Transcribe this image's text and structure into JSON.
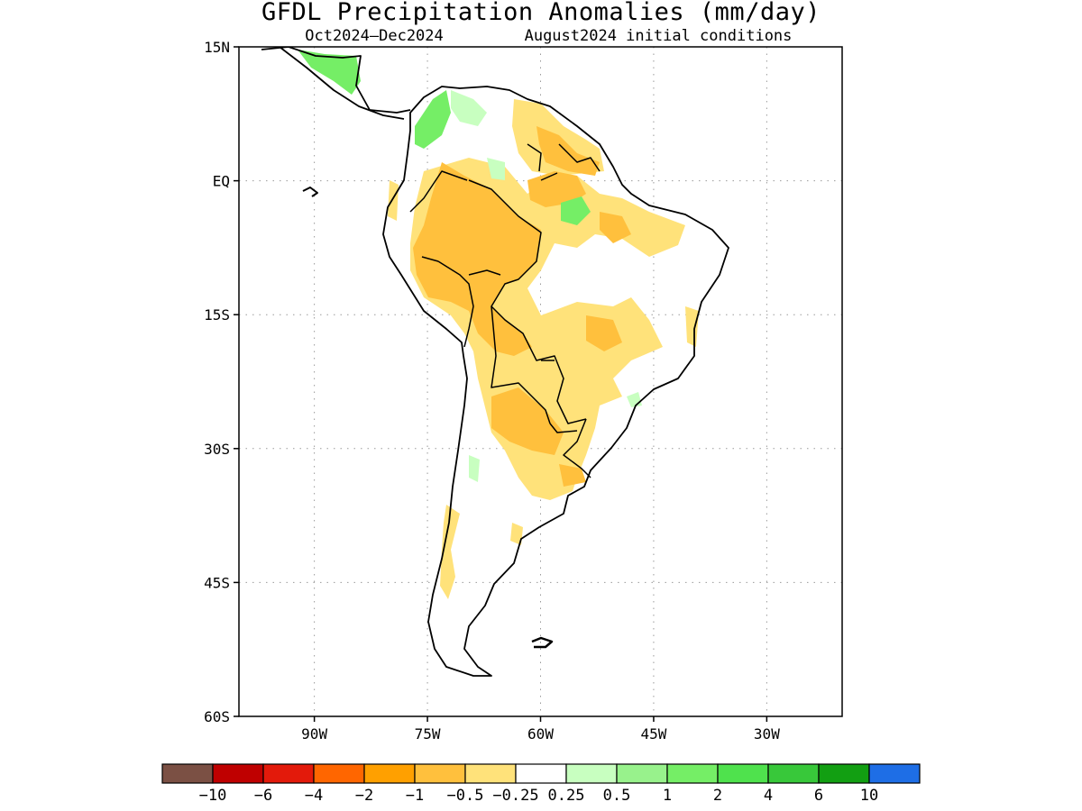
{
  "title": "GFDL Precipitation Anomalies (mm/day)",
  "subtitle_left": "Oct2024—Dec2024",
  "subtitle_right": "August2024 initial conditions",
  "map": {
    "lon_range": [
      -100,
      -20
    ],
    "lat_range": [
      -60,
      15
    ],
    "lat_ticks": [
      {
        "value": 15,
        "label": "15N"
      },
      {
        "value": 0,
        "label": "EQ"
      },
      {
        "value": -15,
        "label": "15S"
      },
      {
        "value": -30,
        "label": "30S"
      },
      {
        "value": -45,
        "label": "45S"
      },
      {
        "value": -60,
        "label": "60S"
      }
    ],
    "lon_ticks": [
      {
        "value": -90,
        "label": "90W"
      },
      {
        "value": -75,
        "label": "75W"
      },
      {
        "value": -60,
        "label": "60W"
      },
      {
        "value": -45,
        "label": "45W"
      },
      {
        "value": -30,
        "label": "30W"
      }
    ],
    "grid": "dotted"
  },
  "colorbar": {
    "colors": [
      "#7b5044",
      "#bf0000",
      "#e31a0b",
      "#ff6600",
      "#ffa000",
      "#ffc03d",
      "#ffe27a",
      "#ffffff",
      "#c8ffc0",
      "#98f28c",
      "#75ee66",
      "#4fe24d",
      "#38c83a",
      "#129f12",
      "#1e6ee6"
    ],
    "labels": [
      "−10",
      "−6",
      "−4",
      "−2",
      "−1",
      "−0.5",
      "−0.25",
      "0.25",
      "0.5",
      "1",
      "2",
      "4",
      "6",
      "10"
    ]
  }
}
